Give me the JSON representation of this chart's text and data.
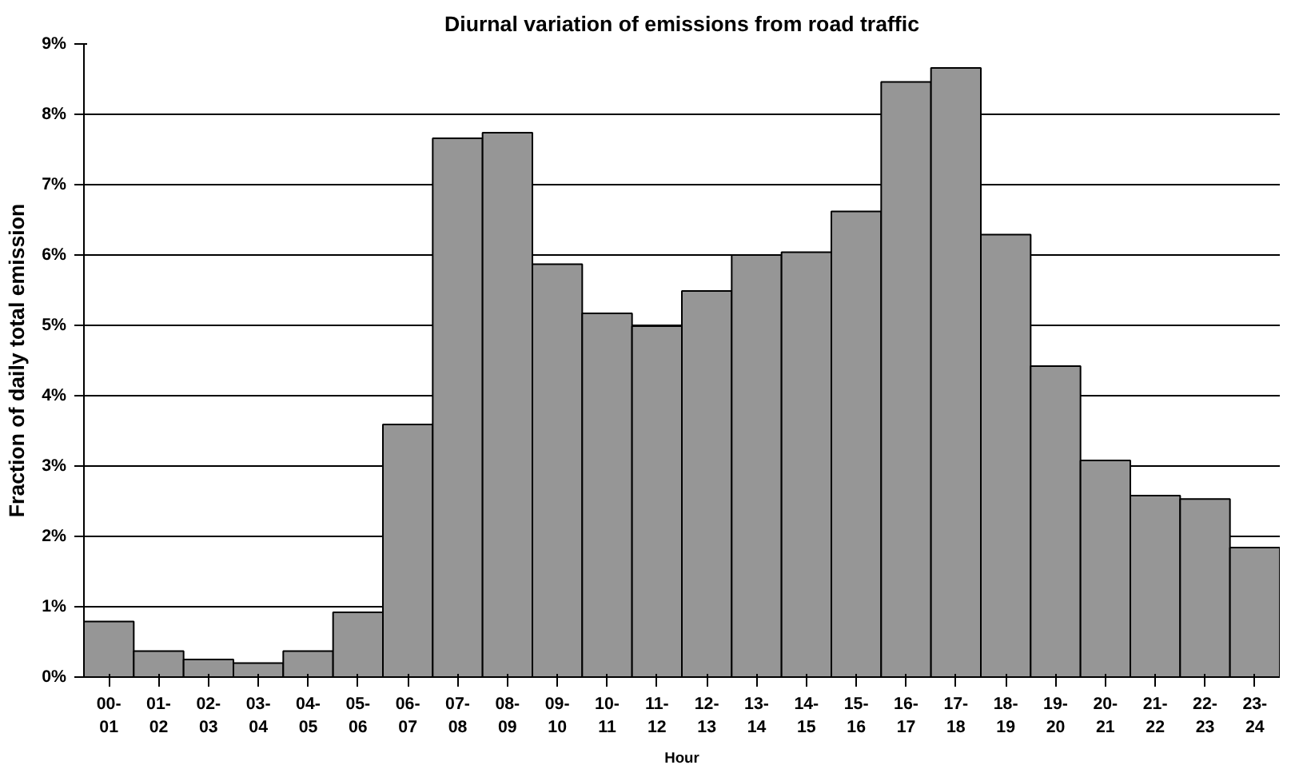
{
  "chart_data": {
    "type": "bar",
    "title": "Diurnal variation of emissions from road traffic",
    "xlabel": "Hour",
    "ylabel": "Fraction of daily total emission",
    "categories": [
      "00-\n01",
      "01-\n02",
      "02-\n03",
      "03-\n04",
      "04-\n05",
      "05-\n06",
      "06-\n07",
      "07-\n08",
      "08-\n09",
      "09-\n10",
      "10-\n11",
      "11-\n12",
      "12-\n13",
      "13-\n14",
      "14-\n15",
      "15-\n16",
      "16-\n17",
      "17-\n18",
      "18-\n19",
      "19-\n20",
      "20-\n21",
      "21-\n22",
      "22-\n23",
      "23-\n24"
    ],
    "values": [
      0.79,
      0.37,
      0.25,
      0.2,
      0.37,
      0.92,
      3.59,
      7.66,
      7.74,
      5.87,
      5.17,
      4.99,
      5.49,
      6.0,
      6.04,
      6.62,
      8.46,
      8.66,
      6.29,
      4.42,
      3.08,
      2.58,
      2.53,
      1.84
    ],
    "color": "#969696",
    "ylim": [
      0,
      9
    ],
    "yticks": [
      {
        "value": 0,
        "label": "0%"
      },
      {
        "value": 1,
        "label": "1%"
      },
      {
        "value": 2,
        "label": "2%"
      },
      {
        "value": 3,
        "label": "3%"
      },
      {
        "value": 4,
        "label": "4%"
      },
      {
        "value": 5,
        "label": "5%"
      },
      {
        "value": 6,
        "label": "6%"
      },
      {
        "value": 7,
        "label": "7%"
      },
      {
        "value": 8,
        "label": "8%"
      },
      {
        "value": 9,
        "label": "9%"
      }
    ],
    "grid": "y"
  }
}
